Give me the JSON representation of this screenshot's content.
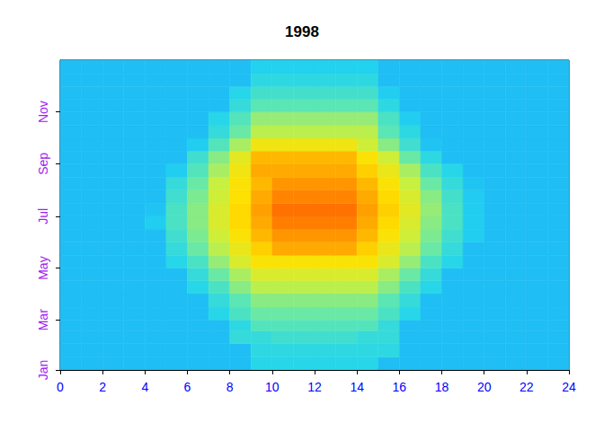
{
  "chart_data": {
    "type": "heatmap",
    "title": "1998",
    "x": [
      0,
      1,
      2,
      3,
      4,
      5,
      6,
      7,
      8,
      9,
      10,
      11,
      12,
      13,
      14,
      15,
      16,
      17,
      18,
      19,
      20,
      21,
      22,
      23
    ],
    "y": [
      0,
      15,
      31,
      46,
      59,
      74,
      90,
      105,
      120,
      135,
      151,
      166,
      181,
      196,
      212,
      227,
      243,
      258,
      273,
      288,
      304,
      319,
      334,
      349
    ],
    "values": [
      [
        10,
        10,
        10,
        10,
        10,
        10,
        10,
        10,
        10,
        18,
        18,
        18,
        18,
        18,
        18,
        10,
        10,
        10,
        10,
        10,
        10,
        10,
        10,
        10
      ],
      [
        10,
        10,
        10,
        10,
        10,
        10,
        10,
        10,
        10,
        20,
        20,
        20,
        20,
        20,
        20,
        20,
        10,
        10,
        10,
        10,
        10,
        10,
        10,
        10
      ],
      [
        10,
        10,
        10,
        10,
        10,
        10,
        10,
        10,
        22,
        22,
        25,
        25,
        25,
        25,
        22,
        22,
        10,
        10,
        10,
        10,
        10,
        10,
        10,
        10
      ],
      [
        10,
        10,
        10,
        10,
        10,
        10,
        10,
        10,
        20,
        30,
        30,
        30,
        30,
        30,
        30,
        22,
        10,
        10,
        10,
        10,
        10,
        10,
        10,
        10
      ],
      [
        10,
        10,
        10,
        10,
        10,
        10,
        10,
        18,
        28,
        35,
        35,
        35,
        35,
        35,
        35,
        28,
        18,
        10,
        10,
        10,
        10,
        10,
        10,
        10
      ],
      [
        10,
        10,
        10,
        10,
        10,
        10,
        10,
        22,
        32,
        40,
        40,
        40,
        40,
        40,
        40,
        32,
        22,
        10,
        10,
        10,
        10,
        10,
        10,
        10
      ],
      [
        10,
        10,
        10,
        10,
        10,
        10,
        18,
        28,
        40,
        48,
        48,
        48,
        48,
        48,
        48,
        40,
        28,
        18,
        10,
        10,
        10,
        10,
        10,
        10
      ],
      [
        10,
        10,
        10,
        10,
        10,
        10,
        22,
        35,
        45,
        55,
        55,
        55,
        55,
        55,
        55,
        45,
        35,
        22,
        10,
        10,
        10,
        10,
        10,
        10
      ],
      [
        10,
        10,
        10,
        10,
        10,
        18,
        28,
        42,
        55,
        65,
        65,
        65,
        65,
        65,
        65,
        55,
        42,
        28,
        18,
        10,
        10,
        10,
        10,
        10
      ],
      [
        10,
        10,
        10,
        10,
        10,
        22,
        35,
        48,
        60,
        70,
        78,
        78,
        78,
        78,
        70,
        60,
        48,
        35,
        22,
        10,
        10,
        10,
        10,
        10
      ],
      [
        10,
        10,
        10,
        10,
        10,
        25,
        38,
        52,
        65,
        75,
        82,
        82,
        82,
        82,
        75,
        65,
        52,
        38,
        25,
        15,
        10,
        10,
        10,
        10
      ],
      [
        10,
        10,
        10,
        10,
        15,
        28,
        40,
        55,
        68,
        78,
        86,
        86,
        86,
        86,
        78,
        68,
        55,
        40,
        28,
        15,
        10,
        10,
        10,
        10
      ],
      [
        10,
        10,
        10,
        10,
        12,
        28,
        40,
        55,
        68,
        80,
        88,
        88,
        88,
        88,
        80,
        70,
        58,
        42,
        28,
        15,
        10,
        10,
        10,
        10
      ],
      [
        10,
        10,
        10,
        10,
        10,
        25,
        38,
        52,
        66,
        78,
        85,
        85,
        85,
        85,
        78,
        68,
        55,
        40,
        26,
        14,
        10,
        10,
        10,
        10
      ],
      [
        10,
        10,
        10,
        10,
        10,
        22,
        35,
        50,
        65,
        75,
        82,
        82,
        82,
        82,
        75,
        65,
        50,
        35,
        22,
        12,
        10,
        10,
        10,
        10
      ],
      [
        10,
        10,
        10,
        10,
        10,
        15,
        30,
        45,
        62,
        78,
        78,
        78,
        78,
        78,
        70,
        60,
        45,
        28,
        18,
        10,
        10,
        10,
        10,
        10
      ],
      [
        10,
        10,
        10,
        10,
        10,
        10,
        25,
        40,
        58,
        75,
        75,
        75,
        75,
        75,
        65,
        52,
        35,
        20,
        10,
        10,
        10,
        10,
        10,
        10
      ],
      [
        10,
        10,
        10,
        10,
        10,
        10,
        15,
        30,
        45,
        62,
        62,
        62,
        62,
        62,
        52,
        40,
        25,
        12,
        10,
        10,
        10,
        10,
        10,
        10
      ],
      [
        10,
        10,
        10,
        10,
        10,
        10,
        10,
        22,
        35,
        48,
        48,
        48,
        48,
        48,
        48,
        32,
        20,
        10,
        10,
        10,
        10,
        10,
        10,
        10
      ],
      [
        10,
        10,
        10,
        10,
        10,
        10,
        10,
        18,
        30,
        42,
        42,
        42,
        42,
        42,
        42,
        28,
        15,
        10,
        10,
        10,
        10,
        10,
        10,
        10
      ],
      [
        10,
        10,
        10,
        10,
        10,
        10,
        10,
        10,
        22,
        32,
        32,
        32,
        32,
        32,
        32,
        20,
        10,
        10,
        10,
        10,
        10,
        10,
        10,
        10
      ],
      [
        10,
        10,
        10,
        10,
        10,
        10,
        10,
        10,
        18,
        26,
        26,
        26,
        26,
        26,
        26,
        15,
        10,
        10,
        10,
        10,
        10,
        10,
        10,
        10
      ],
      [
        10,
        10,
        10,
        10,
        10,
        10,
        10,
        10,
        10,
        20,
        20,
        20,
        20,
        20,
        20,
        10,
        10,
        10,
        10,
        10,
        10,
        10,
        10,
        10
      ],
      [
        10,
        10,
        10,
        10,
        10,
        10,
        10,
        10,
        10,
        16,
        16,
        16,
        16,
        16,
        16,
        10,
        10,
        10,
        10,
        10,
        10,
        10,
        10,
        10
      ]
    ],
    "xlim": [
      0,
      24
    ],
    "ylim": [
      0,
      365
    ],
    "xticks": [
      0,
      2,
      4,
      6,
      8,
      10,
      12,
      14,
      16,
      18,
      20,
      22,
      24
    ],
    "yticks": [
      {
        "value": 0,
        "label": "Jan"
      },
      {
        "value": 59,
        "label": "Mar"
      },
      {
        "value": 120,
        "label": "May"
      },
      {
        "value": 181,
        "label": "Jul"
      },
      {
        "value": 243,
        "label": "Sep"
      },
      {
        "value": 304,
        "label": "Nov"
      }
    ],
    "zlim": [
      0,
      100
    ]
  }
}
